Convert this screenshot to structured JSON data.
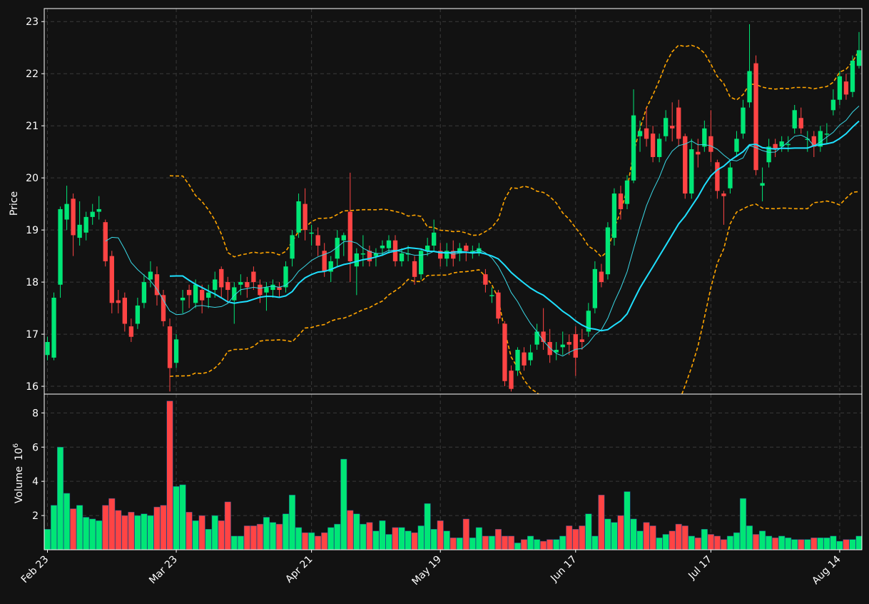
{
  "chart_data": [
    {
      "type": "candlestick",
      "panel": "price",
      "title": "",
      "xlabel": "",
      "ylabel": "Price",
      "ylim": [
        15.85,
        23.25
      ],
      "yticks": [
        "16",
        "17",
        "18",
        "19",
        "20",
        "21",
        "22",
        "23"
      ],
      "xticks": [
        "Feb 23",
        "Mar 23",
        "Apr 21",
        "May 19",
        "Jun 17",
        "Jul 17",
        "Aug 14"
      ],
      "grid": true,
      "up_color": "#00e676",
      "down_color": "#ff4444",
      "series": [
        {
          "name": "fast moving average",
          "color": "#3ad8e6"
        },
        {
          "name": "slow moving average",
          "color": "#1fe0ff"
        },
        {
          "name": "upper band",
          "color": "#ffa500"
        },
        {
          "name": "lower band",
          "color": "#ffa500"
        }
      ],
      "anchors": [
        [
          0,
          16.6,
          16.85,
          16.5,
          16.95
        ],
        [
          1,
          16.55,
          17.7,
          16.5,
          17.8
        ],
        [
          2,
          17.95,
          19.4,
          17.7,
          19.45
        ],
        [
          3,
          19.2,
          19.5,
          19.0,
          19.85
        ],
        [
          4,
          19.6,
          18.9,
          18.5,
          19.7
        ],
        [
          5,
          18.85,
          19.1,
          18.7,
          19.55
        ],
        [
          6,
          18.95,
          19.25,
          18.8,
          19.35
        ],
        [
          7,
          19.25,
          19.35,
          19.1,
          19.5
        ],
        [
          8,
          19.35,
          19.4,
          19.2,
          19.65
        ],
        [
          9,
          19.15,
          18.4,
          18.3,
          19.2
        ],
        [
          10,
          18.5,
          17.6,
          17.4,
          18.6
        ],
        [
          11,
          17.65,
          17.6,
          17.4,
          17.85
        ],
        [
          12,
          17.7,
          17.2,
          17.05,
          17.8
        ],
        [
          13,
          17.15,
          16.95,
          16.85,
          17.3
        ],
        [
          14,
          17.2,
          17.55,
          17.1,
          17.7
        ],
        [
          15,
          17.6,
          18.0,
          17.5,
          18.15
        ],
        [
          16,
          18.05,
          18.2,
          17.9,
          18.4
        ],
        [
          17,
          18.15,
          17.75,
          17.55,
          18.3
        ],
        [
          18,
          17.75,
          17.25,
          17.15,
          17.85
        ],
        [
          19,
          17.15,
          16.35,
          15.9,
          17.3
        ],
        [
          20,
          16.45,
          16.9,
          16.35,
          17.0
        ],
        [
          21,
          17.65,
          17.7,
          17.4,
          17.85
        ],
        [
          22,
          17.85,
          17.75,
          17.5,
          17.95
        ],
        [
          23,
          17.6,
          17.95,
          17.5,
          18.05
        ],
        [
          24,
          17.85,
          17.65,
          17.4,
          17.95
        ],
        [
          25,
          17.7,
          17.8,
          17.5,
          17.95
        ],
        [
          26,
          17.85,
          18.05,
          17.7,
          18.2
        ],
        [
          27,
          18.25,
          17.9,
          17.7,
          18.3
        ],
        [
          28,
          18.0,
          17.85,
          17.6,
          18.1
        ],
        [
          29,
          17.65,
          17.9,
          17.2,
          18.0
        ],
        [
          30,
          17.95,
          18.0,
          17.75,
          18.15
        ],
        [
          31,
          18.0,
          17.9,
          17.7,
          18.1
        ],
        [
          32,
          18.2,
          18.0,
          17.85,
          18.3
        ],
        [
          33,
          17.95,
          17.75,
          17.6,
          18.05
        ],
        [
          34,
          17.8,
          17.9,
          17.45,
          18.0
        ],
        [
          35,
          17.85,
          17.95,
          17.7,
          18.05
        ],
        [
          36,
          17.9,
          17.85,
          17.7,
          18.0
        ],
        [
          37,
          17.9,
          18.3,
          17.8,
          18.4
        ],
        [
          38,
          18.45,
          18.9,
          18.3,
          19.0
        ],
        [
          39,
          18.95,
          19.55,
          18.85,
          19.7
        ],
        [
          40,
          19.5,
          19.0,
          18.8,
          19.8
        ],
        [
          41,
          18.95,
          18.95,
          18.7,
          19.1
        ],
        [
          42,
          18.9,
          18.7,
          18.5,
          19.05
        ],
        [
          43,
          18.6,
          18.2,
          18.1,
          18.75
        ],
        [
          44,
          18.2,
          18.4,
          18.0,
          18.5
        ],
        [
          45,
          18.45,
          18.85,
          18.3,
          19.0
        ],
        [
          46,
          18.8,
          18.9,
          18.5,
          18.95
        ],
        [
          47,
          19.35,
          18.4,
          18.0,
          20.1
        ],
        [
          48,
          18.3,
          18.55,
          17.75,
          18.65
        ],
        [
          49,
          18.55,
          18.55,
          18.3,
          18.9
        ],
        [
          50,
          18.6,
          18.4,
          18.3,
          18.7
        ],
        [
          51,
          18.5,
          18.55,
          18.3,
          18.65
        ],
        [
          52,
          18.65,
          18.7,
          18.5,
          18.8
        ],
        [
          53,
          18.65,
          18.8,
          18.55,
          18.9
        ],
        [
          54,
          18.8,
          18.4,
          18.3,
          18.9
        ],
        [
          55,
          18.4,
          18.55,
          18.3,
          18.65
        ],
        [
          56,
          18.55,
          18.55,
          18.4,
          18.7
        ],
        [
          57,
          18.4,
          18.1,
          17.95,
          18.5
        ],
        [
          58,
          18.15,
          18.6,
          18.05,
          18.65
        ],
        [
          59,
          18.6,
          18.7,
          18.5,
          18.85
        ],
        [
          60,
          18.7,
          18.95,
          18.6,
          19.2
        ],
        [
          61,
          18.6,
          18.45,
          18.3,
          18.75
        ],
        [
          62,
          18.45,
          18.6,
          18.3,
          18.75
        ],
        [
          63,
          18.6,
          18.45,
          18.3,
          18.8
        ],
        [
          64,
          18.55,
          18.65,
          18.4,
          18.75
        ],
        [
          65,
          18.7,
          18.6,
          18.4,
          18.75
        ],
        [
          66,
          18.6,
          18.6,
          18.45,
          18.7
        ],
        [
          67,
          18.55,
          18.65,
          18.5,
          18.75
        ],
        [
          68,
          18.15,
          17.95,
          17.8,
          18.25
        ],
        [
          69,
          17.75,
          17.75,
          17.6,
          17.9
        ],
        [
          70,
          17.8,
          17.3,
          17.2,
          17.85
        ],
        [
          71,
          17.2,
          16.1,
          16.0,
          17.25
        ],
        [
          72,
          16.3,
          15.95,
          15.9,
          16.4
        ],
        [
          73,
          16.3,
          16.7,
          16.2,
          16.75
        ],
        [
          74,
          16.65,
          16.4,
          16.3,
          16.75
        ],
        [
          75,
          16.5,
          16.65,
          16.4,
          16.8
        ],
        [
          76,
          16.8,
          17.05,
          16.7,
          17.2
        ],
        [
          77,
          17.05,
          16.85,
          16.7,
          17.5
        ],
        [
          78,
          16.85,
          16.6,
          16.45,
          17.1
        ],
        [
          79,
          16.65,
          16.7,
          16.5,
          16.85
        ],
        [
          80,
          16.75,
          16.8,
          16.6,
          17.05
        ],
        [
          81,
          16.85,
          16.8,
          16.6,
          17.0
        ],
        [
          82,
          17.0,
          16.55,
          16.2,
          17.15
        ],
        [
          83,
          16.9,
          16.85,
          16.7,
          17.1
        ],
        [
          84,
          17.05,
          17.45,
          16.95,
          17.6
        ],
        [
          85,
          17.5,
          18.25,
          17.4,
          18.4
        ],
        [
          86,
          18.2,
          18.0,
          17.9,
          18.35
        ],
        [
          87,
          18.15,
          19.05,
          18.05,
          19.15
        ],
        [
          88,
          18.85,
          19.7,
          18.7,
          19.8
        ],
        [
          89,
          19.7,
          19.4,
          19.2,
          19.85
        ],
        [
          90,
          19.5,
          19.95,
          19.4,
          20.05
        ],
        [
          91,
          19.95,
          21.2,
          19.9,
          21.7
        ],
        [
          92,
          20.8,
          20.9,
          20.5,
          21.1
        ],
        [
          93,
          20.95,
          20.75,
          20.6,
          21.35
        ],
        [
          94,
          20.85,
          20.4,
          20.3,
          21.0
        ],
        [
          95,
          20.4,
          20.75,
          20.3,
          20.85
        ],
        [
          96,
          20.8,
          21.15,
          20.7,
          21.3
        ],
        [
          97,
          21.0,
          20.95,
          20.7,
          21.45
        ],
        [
          98,
          21.35,
          20.75,
          20.6,
          21.5
        ],
        [
          99,
          20.8,
          19.7,
          19.6,
          20.85
        ],
        [
          100,
          19.7,
          20.55,
          19.6,
          20.75
        ],
        [
          101,
          20.5,
          20.45,
          20.2,
          20.75
        ],
        [
          102,
          20.6,
          20.95,
          20.5,
          21.1
        ],
        [
          103,
          20.8,
          20.5,
          20.3,
          21.3
        ],
        [
          104,
          20.3,
          19.75,
          19.6,
          20.35
        ],
        [
          105,
          19.7,
          19.65,
          19.1,
          19.75
        ],
        [
          106,
          19.8,
          20.2,
          19.7,
          20.3
        ],
        [
          107,
          20.5,
          20.75,
          20.4,
          20.9
        ],
        [
          108,
          20.85,
          21.35,
          20.75,
          21.5
        ],
        [
          109,
          21.45,
          22.05,
          21.35,
          22.95
        ],
        [
          110,
          22.2,
          20.15,
          20.05,
          22.35
        ],
        [
          111,
          19.85,
          19.9,
          19.55,
          20.2
        ],
        [
          112,
          20.3,
          20.6,
          20.2,
          20.75
        ],
        [
          113,
          20.65,
          20.55,
          20.4,
          20.75
        ],
        [
          114,
          20.6,
          20.7,
          20.5,
          20.8
        ],
        [
          115,
          20.65,
          20.65,
          20.5,
          20.8
        ],
        [
          116,
          20.95,
          21.3,
          20.85,
          21.4
        ],
        [
          117,
          21.15,
          20.95,
          20.85,
          21.35
        ],
        [
          118,
          20.75,
          20.75,
          20.5,
          20.9
        ],
        [
          119,
          20.8,
          20.6,
          20.4,
          20.9
        ],
        [
          120,
          20.6,
          20.9,
          20.5,
          21.0
        ],
        [
          121,
          20.85,
          20.85,
          20.65,
          21.05
        ],
        [
          122,
          21.3,
          21.5,
          21.2,
          21.7
        ],
        [
          123,
          21.5,
          21.95,
          21.4,
          22.05
        ],
        [
          124,
          21.85,
          21.6,
          21.5,
          22.0
        ],
        [
          125,
          21.65,
          22.25,
          21.55,
          22.35
        ],
        [
          126,
          22.15,
          22.45,
          22.1,
          22.8
        ],
        [
          127,
          22.4,
          22.5,
          22.3,
          22.65
        ],
        [
          128,
          22.75,
          22.8,
          22.5,
          23.15
        ]
      ]
    },
    {
      "type": "bar",
      "panel": "volume",
      "title": "",
      "xlabel": "",
      "ylabel": "Volume",
      "ylabel_exponent": "10",
      "ylabel_exponent_power": "6",
      "ylim": [
        0,
        9.1
      ],
      "yticks": [
        "2",
        "4",
        "6",
        "8"
      ],
      "grid": true,
      "values": [
        1.2,
        2.6,
        6.0,
        3.3,
        2.4,
        2.6,
        1.9,
        1.8,
        1.7,
        2.6,
        3.0,
        2.3,
        2.0,
        2.2,
        2.0,
        2.1,
        2.0,
        2.5,
        2.6,
        8.7,
        3.7,
        3.8,
        2.2,
        1.7,
        2.0,
        1.2,
        2.0,
        1.7,
        2.8,
        0.8,
        0.8,
        1.4,
        1.4,
        1.5,
        1.9,
        1.6,
        1.5,
        2.1,
        3.2,
        1.3,
        1.0,
        1.0,
        0.8,
        1.0,
        1.3,
        1.5,
        5.3,
        2.3,
        2.1,
        1.5,
        1.6,
        1.1,
        1.7,
        0.9,
        1.3,
        1.3,
        1.1,
        1.0,
        1.4,
        2.7,
        1.2,
        1.7,
        1.1,
        0.7,
        0.7,
        1.8,
        0.7,
        1.3,
        0.8,
        0.8,
        1.2,
        0.8,
        0.8,
        0.4,
        0.6,
        0.8,
        0.6,
        0.5,
        0.6,
        0.6,
        0.8,
        1.4,
        1.2,
        1.4,
        2.1,
        0.8,
        3.2,
        1.8,
        1.6,
        2.0,
        3.4,
        1.8,
        1.1,
        1.6,
        1.4,
        0.7,
        0.9,
        1.1,
        1.5,
        1.4,
        0.8,
        0.7,
        1.2,
        0.9,
        0.8,
        0.6,
        0.8,
        1.0,
        3.0,
        1.4,
        0.9,
        1.1,
        0.8,
        0.7,
        0.8,
        0.7,
        0.6,
        0.6,
        0.6,
        0.7,
        0.7,
        0.7,
        0.8,
        0.5,
        0.6,
        0.6,
        0.8
      ]
    }
  ]
}
